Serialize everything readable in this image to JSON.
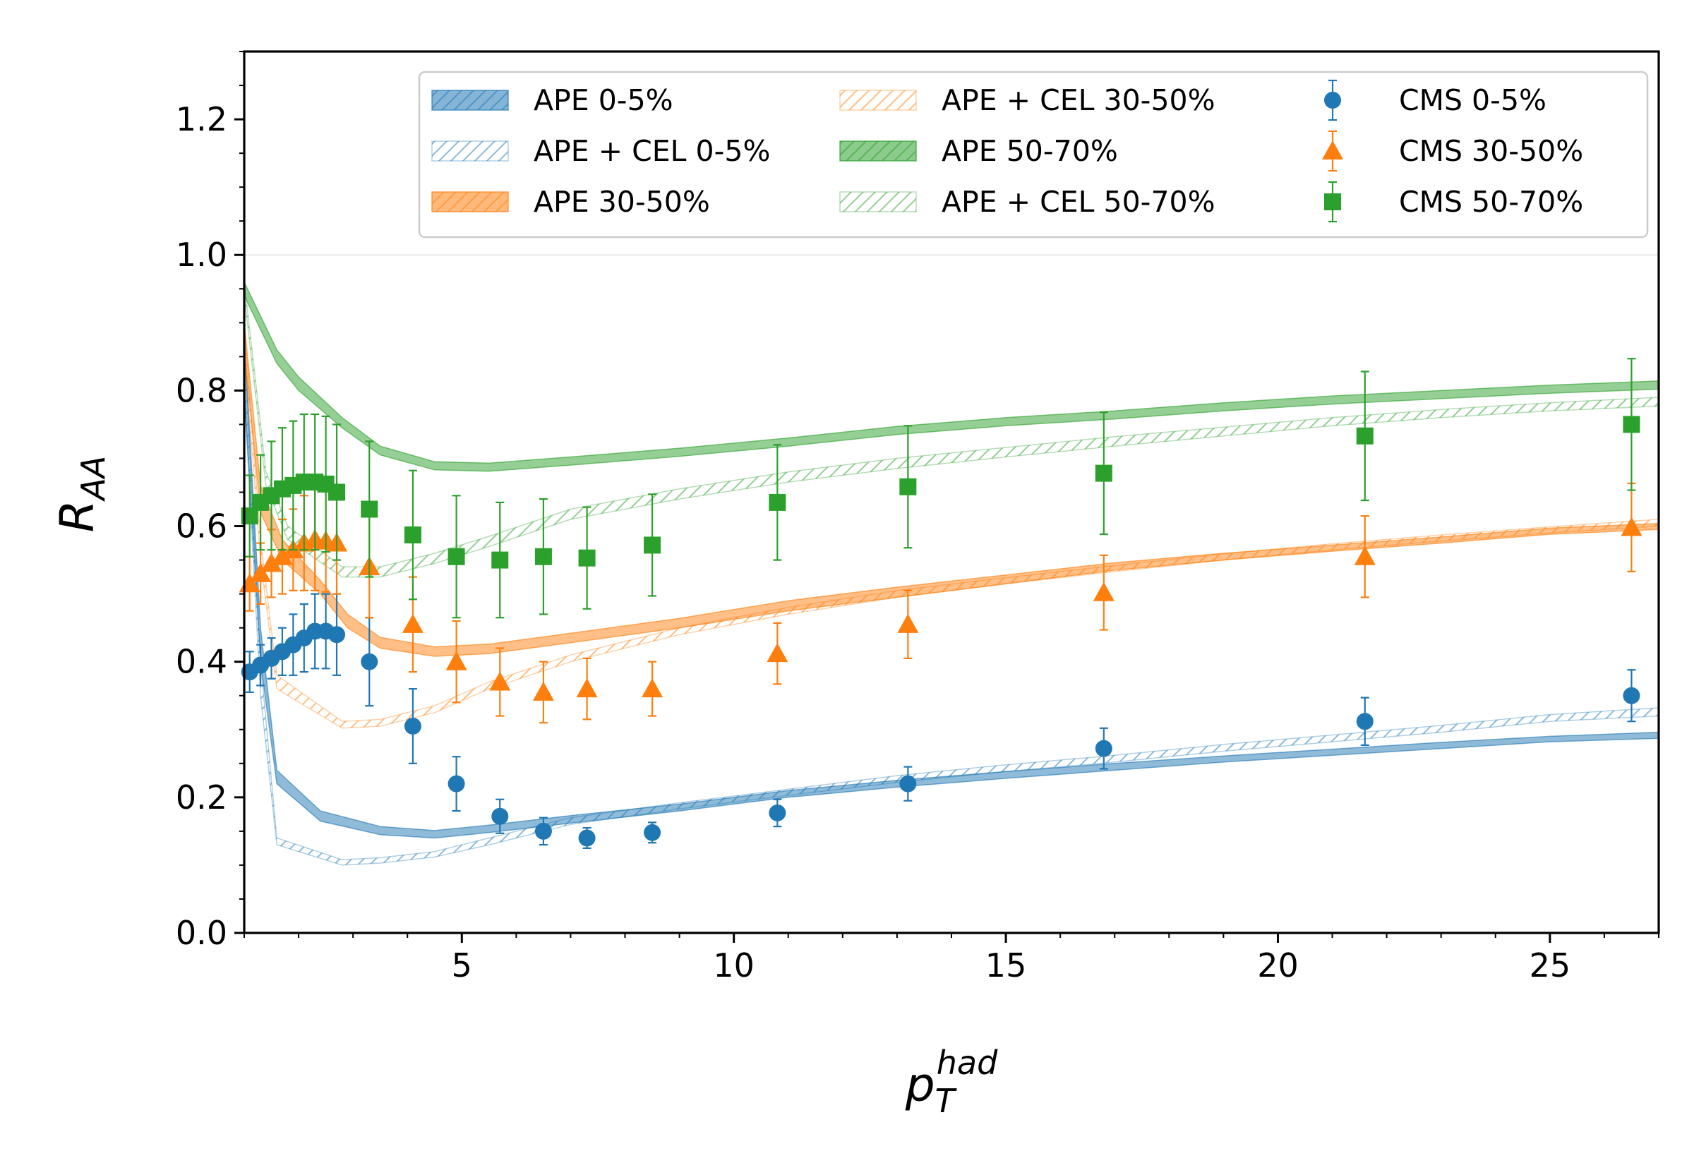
{
  "chart_data": {
    "type": "line",
    "xlabel": "p",
    "xlabel_sub": "T",
    "xlabel_sup": "had",
    "ylabel": "R",
    "ylabel_sub": "AA",
    "xlim": [
      1,
      27
    ],
    "ylim": [
      0,
      1.3
    ],
    "x_ticks": [
      5,
      10,
      15,
      20,
      25
    ],
    "x_tick_labels": [
      "5",
      "10",
      "15",
      "20",
      "25"
    ],
    "y_ticks": [
      0.0,
      0.2,
      0.4,
      0.6,
      0.8,
      1.0,
      1.2
    ],
    "y_tick_labels": [
      "0.0",
      "0.2",
      "0.4",
      "0.6",
      "0.8",
      "1.0",
      "1.2"
    ],
    "reference_line": 1.0,
    "legend_position": "top-right",
    "colors": {
      "blue": "#1f77b4",
      "orange": "#ff7f0e",
      "green": "#2ca02c"
    },
    "bands": [
      {
        "name": "APE 0-5%",
        "color": "#1f77b4",
        "style": "filled",
        "x": [
          1.0,
          1.3,
          1.6,
          2.4,
          3.5,
          4.5,
          5.5,
          7.0,
          9.0,
          11.0,
          13.0,
          15.0,
          17.0,
          19.0,
          21.0,
          23.0,
          25.0,
          27.0
        ],
        "lo": [
          0.8,
          0.4,
          0.22,
          0.165,
          0.145,
          0.14,
          0.148,
          0.162,
          0.18,
          0.2,
          0.215,
          0.228,
          0.24,
          0.252,
          0.262,
          0.272,
          0.282,
          0.287
        ],
        "hi": [
          0.88,
          0.45,
          0.24,
          0.18,
          0.157,
          0.151,
          0.159,
          0.173,
          0.19,
          0.21,
          0.225,
          0.238,
          0.25,
          0.261,
          0.271,
          0.281,
          0.29,
          0.296
        ]
      },
      {
        "name": "APE + CEL 0-5%",
        "color": "#1f77b4",
        "style": "hatched",
        "x": [
          1.0,
          1.3,
          1.6,
          2.8,
          3.5,
          4.5,
          5.5,
          7.0,
          9.0,
          11.0,
          13.0,
          15.0,
          17.0,
          19.0,
          21.0,
          23.0,
          25.0,
          27.0
        ],
        "lo": [
          0.8,
          0.35,
          0.13,
          0.1,
          0.103,
          0.112,
          0.13,
          0.16,
          0.183,
          0.203,
          0.222,
          0.238,
          0.252,
          0.268,
          0.282,
          0.296,
          0.312,
          0.32
        ],
        "hi": [
          0.88,
          0.4,
          0.14,
          0.108,
          0.111,
          0.12,
          0.14,
          0.17,
          0.192,
          0.212,
          0.232,
          0.248,
          0.262,
          0.278,
          0.292,
          0.306,
          0.322,
          0.332
        ]
      },
      {
        "name": "APE 30-50%",
        "color": "#ff7f0e",
        "style": "filled",
        "x": [
          1.0,
          1.3,
          1.7,
          2.4,
          2.9,
          3.5,
          4.5,
          5.5,
          7.0,
          9.0,
          11.0,
          13.0,
          15.0,
          17.0,
          19.0,
          21.0,
          23.0,
          25.0,
          27.0
        ],
        "lo": [
          0.86,
          0.62,
          0.55,
          0.5,
          0.45,
          0.42,
          0.408,
          0.412,
          0.428,
          0.45,
          0.475,
          0.495,
          0.515,
          0.535,
          0.55,
          0.563,
          0.575,
          0.588,
          0.595
        ],
        "hi": [
          0.9,
          0.66,
          0.58,
          0.52,
          0.47,
          0.436,
          0.422,
          0.426,
          0.442,
          0.464,
          0.49,
          0.51,
          0.528,
          0.546,
          0.56,
          0.572,
          0.584,
          0.597,
          0.604
        ]
      },
      {
        "name": "APE + CEL 30-50%",
        "color": "#ff7f0e",
        "style": "hatched",
        "x": [
          1.0,
          1.3,
          1.6,
          2.8,
          3.5,
          4.5,
          5.5,
          7.0,
          9.0,
          11.0,
          13.0,
          15.0,
          17.0,
          19.0,
          21.0,
          23.0,
          25.0,
          27.0
        ],
        "lo": [
          0.86,
          0.55,
          0.36,
          0.302,
          0.305,
          0.325,
          0.36,
          0.4,
          0.44,
          0.47,
          0.495,
          0.515,
          0.533,
          0.55,
          0.565,
          0.578,
          0.59,
          0.6
        ],
        "hi": [
          0.9,
          0.58,
          0.38,
          0.312,
          0.315,
          0.335,
          0.37,
          0.41,
          0.45,
          0.48,
          0.505,
          0.524,
          0.542,
          0.559,
          0.574,
          0.587,
          0.599,
          0.61
        ]
      },
      {
        "name": "APE 50-70%",
        "color": "#2ca02c",
        "style": "filled",
        "x": [
          1.0,
          1.6,
          2.0,
          2.8,
          3.5,
          4.5,
          5.5,
          7.0,
          9.0,
          11.0,
          13.0,
          15.0,
          17.0,
          19.0,
          21.0,
          23.0,
          25.0,
          27.0
        ],
        "lo": [
          0.94,
          0.84,
          0.8,
          0.745,
          0.705,
          0.683,
          0.681,
          0.69,
          0.703,
          0.718,
          0.735,
          0.748,
          0.758,
          0.77,
          0.78,
          0.788,
          0.796,
          0.802
        ],
        "hi": [
          0.96,
          0.86,
          0.82,
          0.76,
          0.718,
          0.695,
          0.693,
          0.702,
          0.715,
          0.73,
          0.747,
          0.76,
          0.77,
          0.782,
          0.792,
          0.8,
          0.808,
          0.814
        ]
      },
      {
        "name": "APE + CEL 50-70%",
        "color": "#2ca02c",
        "style": "hatched",
        "x": [
          1.0,
          1.4,
          1.8,
          2.8,
          3.5,
          4.5,
          5.5,
          7.0,
          9.0,
          11.0,
          13.0,
          15.0,
          17.0,
          19.0,
          21.0,
          23.0,
          25.0,
          27.0
        ],
        "lo": [
          0.94,
          0.66,
          0.58,
          0.525,
          0.525,
          0.545,
          0.57,
          0.61,
          0.64,
          0.665,
          0.685,
          0.702,
          0.718,
          0.733,
          0.748,
          0.76,
          0.77,
          0.777
        ],
        "hi": [
          0.96,
          0.68,
          0.6,
          0.54,
          0.54,
          0.56,
          0.585,
          0.625,
          0.655,
          0.68,
          0.7,
          0.716,
          0.732,
          0.746,
          0.76,
          0.772,
          0.782,
          0.79
        ]
      }
    ],
    "points": [
      {
        "name": "CMS 0-5%",
        "color": "#1f77b4",
        "marker": "circle",
        "x": [
          1.1,
          1.3,
          1.5,
          1.7,
          1.9,
          2.1,
          2.3,
          2.5,
          2.7,
          3.3,
          4.1,
          4.9,
          5.7,
          6.5,
          7.3,
          8.5,
          10.8,
          13.2,
          16.8,
          21.6,
          26.5
        ],
        "y": [
          0.385,
          0.395,
          0.405,
          0.415,
          0.425,
          0.435,
          0.445,
          0.445,
          0.44,
          0.4,
          0.305,
          0.22,
          0.172,
          0.15,
          0.14,
          0.148,
          0.177,
          0.22,
          0.272,
          0.312,
          0.35
        ],
        "err": [
          0.03,
          0.03,
          0.03,
          0.035,
          0.045,
          0.05,
          0.055,
          0.055,
          0.06,
          0.065,
          0.055,
          0.04,
          0.025,
          0.02,
          0.015,
          0.015,
          0.02,
          0.025,
          0.03,
          0.035,
          0.038
        ]
      },
      {
        "name": "CMS 30-50%",
        "color": "#ff7f0e",
        "marker": "triangle",
        "x": [
          1.1,
          1.3,
          1.5,
          1.7,
          1.9,
          2.1,
          2.3,
          2.5,
          2.7,
          3.3,
          4.1,
          4.9,
          5.7,
          6.5,
          7.3,
          8.5,
          10.8,
          13.2,
          16.8,
          21.6,
          26.5
        ],
        "y": [
          0.515,
          0.53,
          0.545,
          0.555,
          0.565,
          0.575,
          0.58,
          0.578,
          0.575,
          0.54,
          0.455,
          0.4,
          0.37,
          0.355,
          0.36,
          0.36,
          0.412,
          0.455,
          0.502,
          0.555,
          0.598
        ],
        "err": [
          0.04,
          0.045,
          0.05,
          0.055,
          0.06,
          0.07,
          0.075,
          0.075,
          0.075,
          0.075,
          0.07,
          0.06,
          0.05,
          0.045,
          0.045,
          0.04,
          0.045,
          0.05,
          0.055,
          0.06,
          0.065
        ]
      },
      {
        "name": "CMS 50-70%",
        "color": "#2ca02c",
        "marker": "square",
        "x": [
          1.1,
          1.3,
          1.5,
          1.7,
          1.9,
          2.1,
          2.3,
          2.5,
          2.7,
          3.3,
          4.1,
          4.9,
          5.7,
          6.5,
          7.3,
          8.5,
          10.8,
          13.2,
          16.8,
          21.6,
          26.5
        ],
        "y": [
          0.615,
          0.635,
          0.645,
          0.655,
          0.66,
          0.665,
          0.665,
          0.662,
          0.65,
          0.625,
          0.587,
          0.555,
          0.55,
          0.555,
          0.553,
          0.572,
          0.635,
          0.658,
          0.678,
          0.733,
          0.75
        ],
        "err": [
          0.06,
          0.07,
          0.08,
          0.09,
          0.095,
          0.1,
          0.1,
          0.1,
          0.1,
          0.1,
          0.095,
          0.09,
          0.085,
          0.085,
          0.075,
          0.075,
          0.085,
          0.09,
          0.09,
          0.095,
          0.097
        ]
      }
    ],
    "legend": {
      "columns": [
        [
          {
            "label": "APE 0-5%",
            "kind": "band-filled",
            "color": "#1f77b4"
          },
          {
            "label": "APE + CEL 0-5%",
            "kind": "band-hatched",
            "color": "#1f77b4"
          },
          {
            "label": "APE 30-50%",
            "kind": "band-filled",
            "color": "#ff7f0e"
          }
        ],
        [
          {
            "label": "APE + CEL 30-50%",
            "kind": "band-hatched",
            "color": "#ff7f0e"
          },
          {
            "label": "APE 50-70%",
            "kind": "band-filled",
            "color": "#2ca02c"
          },
          {
            "label": "APE + CEL 50-70%",
            "kind": "band-hatched",
            "color": "#2ca02c"
          }
        ],
        [
          {
            "label": "CMS 0-5%",
            "kind": "marker-circle",
            "color": "#1f77b4"
          },
          {
            "label": "CMS 30-50%",
            "kind": "marker-triangle",
            "color": "#ff7f0e"
          },
          {
            "label": "CMS 50-70%",
            "kind": "marker-square",
            "color": "#2ca02c"
          }
        ]
      ]
    }
  }
}
